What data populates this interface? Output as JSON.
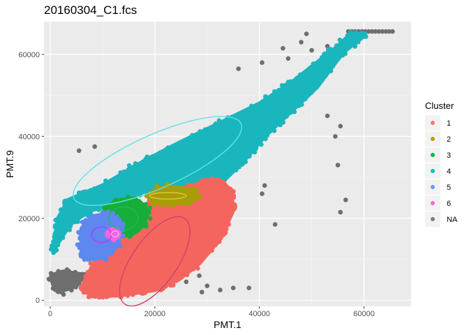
{
  "chart_data": {
    "type": "scatter",
    "title": "20160304_C1.fcs",
    "xlabel": "PMT.1",
    "ylabel": "PMT.9",
    "xlim": [
      -1200,
      69000
    ],
    "ylim": [
      -1500,
      68000
    ],
    "x_ticks": [
      0,
      20000,
      40000,
      60000
    ],
    "x_tick_labels": [
      "0",
      "20000",
      "40000",
      "60000"
    ],
    "y_ticks": [
      0,
      20000,
      40000,
      60000
    ],
    "y_tick_labels": [
      "0",
      "20000",
      "40000",
      "60000"
    ],
    "grid": true,
    "panel_background": "#EBEBEB",
    "legend": {
      "title": "Cluster",
      "placement": "right",
      "entries": [
        {
          "label": "1",
          "color": "#F8766D"
        },
        {
          "label": "2",
          "color": "#B79F00"
        },
        {
          "label": "3",
          "color": "#00BA38"
        },
        {
          "label": "4",
          "color": "#00BFC4"
        },
        {
          "label": "5",
          "color": "#619CFF"
        },
        {
          "label": "6",
          "color": "#F564E3"
        },
        {
          "label": "NA",
          "color": "#7F7F7F"
        }
      ]
    },
    "clusters": [
      {
        "name": "NA",
        "color": "#6E6E6E",
        "kind": "band",
        "path": [
          [
            200,
            6000
          ],
          [
            2500,
            7000
          ],
          [
            6500,
            6200
          ],
          [
            5000,
            3500
          ],
          [
            1500,
            2000
          ],
          [
            500,
            4000
          ]
        ],
        "outliers": [
          [
            5500,
            36500
          ],
          [
            8500,
            37500
          ],
          [
            36000,
            56500
          ],
          [
            36500,
            44000
          ],
          [
            43000,
            18500
          ],
          [
            40500,
            26000
          ],
          [
            41000,
            28000
          ],
          [
            53000,
            45000
          ],
          [
            54500,
            40000
          ],
          [
            55500,
            42500
          ],
          [
            55000,
            33000
          ],
          [
            56500,
            24500
          ],
          [
            55500,
            21500
          ],
          [
            30000,
            3500
          ],
          [
            32500,
            2500
          ],
          [
            35000,
            3000
          ],
          [
            38000,
            3000
          ],
          [
            29000,
            2000
          ],
          [
            26000,
            4500
          ],
          [
            28500,
            6000
          ],
          [
            49000,
            65000
          ],
          [
            53000,
            62000
          ],
          [
            48000,
            63000
          ],
          [
            50000,
            61000
          ],
          [
            45500,
            59000
          ],
          [
            44500,
            61500
          ],
          [
            40500,
            58000
          ]
        ]
      },
      {
        "name": "4",
        "color": "#1AB6BE",
        "kind": "band",
        "path": [
          [
            500,
            12000
          ],
          [
            1500,
            20000
          ],
          [
            3500,
            24500
          ],
          [
            10000,
            28000
          ],
          [
            18000,
            34000
          ],
          [
            24000,
            38000
          ],
          [
            32000,
            43000
          ],
          [
            40000,
            48000
          ],
          [
            46000,
            53000
          ],
          [
            51000,
            58000
          ],
          [
            54500,
            61500
          ],
          [
            57500,
            65000
          ],
          [
            60000,
            64500
          ],
          [
            56000,
            60500
          ],
          [
            51000,
            52000
          ],
          [
            46000,
            46000
          ],
          [
            41000,
            40000
          ],
          [
            37000,
            34000
          ],
          [
            33000,
            29000
          ],
          [
            28500,
            27000
          ],
          [
            24000,
            27500
          ],
          [
            18000,
            26500
          ],
          [
            12500,
            24000
          ],
          [
            8000,
            22000
          ],
          [
            4000,
            19000
          ],
          [
            1500,
            14000
          ]
        ],
        "ellipse": {
          "cx": 20500,
          "cy": 34000,
          "rx": 17500,
          "ry": 6500,
          "angle": 24
        }
      },
      {
        "name": "1",
        "color": "#F4655E",
        "kind": "blob",
        "path": [
          [
            6000,
            3000
          ],
          [
            8500,
            9500
          ],
          [
            11500,
            15000
          ],
          [
            15000,
            20000
          ],
          [
            18500,
            23500
          ],
          [
            22000,
            26000
          ],
          [
            27000,
            28000
          ],
          [
            32000,
            29500
          ],
          [
            34500,
            27000
          ],
          [
            35000,
            22000
          ],
          [
            32500,
            15000
          ],
          [
            28500,
            9000
          ],
          [
            24500,
            5000
          ],
          [
            20000,
            2500
          ],
          [
            13000,
            1200
          ],
          [
            8000,
            1000
          ]
        ],
        "ellipse": {
          "cx": 20000,
          "cy": 9500,
          "rx": 10000,
          "ry": 5500,
          "angle": 55
        }
      },
      {
        "name": "3",
        "color": "#17AD3A",
        "kind": "blob",
        "path": [
          [
            10000,
            19500
          ],
          [
            11000,
            23000
          ],
          [
            13500,
            24500
          ],
          [
            17000,
            24200
          ],
          [
            18500,
            22000
          ],
          [
            18000,
            18500
          ],
          [
            15500,
            16000
          ],
          [
            12000,
            16500
          ]
        ],
        "ellipse": {
          "cx": 14000,
          "cy": 20000,
          "rx": 2800,
          "ry": 2800,
          "angle": 0
        }
      },
      {
        "name": "5",
        "color": "#5E87F0",
        "kind": "blob",
        "path": [
          [
            6000,
            11000
          ],
          [
            6000,
            17500
          ],
          [
            8000,
            20500
          ],
          [
            11500,
            21000
          ],
          [
            13500,
            18500
          ],
          [
            13000,
            13500
          ],
          [
            10500,
            10500
          ],
          [
            7500,
            10000
          ]
        ],
        "ellipse": {
          "cx": 9800,
          "cy": 16000,
          "rx": 1900,
          "ry": 1900,
          "angle": 0
        }
      },
      {
        "name": "2",
        "color": "#A89D09",
        "kind": "blob",
        "path": [
          [
            19000,
            25300
          ],
          [
            20500,
            27300
          ],
          [
            23500,
            27600
          ],
          [
            27000,
            27000
          ],
          [
            28500,
            25200
          ],
          [
            26500,
            23800
          ],
          [
            22500,
            23500
          ],
          [
            19800,
            24100
          ]
        ],
        "ellipse": {
          "cx": 22500,
          "cy": 25500,
          "rx": 3500,
          "ry": 800,
          "angle": 0
        }
      },
      {
        "name": "6",
        "color": "#F564E3",
        "kind": "blob",
        "path": [
          [
            11400,
            15300
          ],
          [
            11600,
            17000
          ],
          [
            12500,
            17300
          ],
          [
            13200,
            16400
          ],
          [
            12600,
            15200
          ]
        ],
        "ellipse": {
          "cx": 12400,
          "cy": 16200,
          "rx": 700,
          "ry": 700,
          "angle": 0
        }
      }
    ]
  }
}
